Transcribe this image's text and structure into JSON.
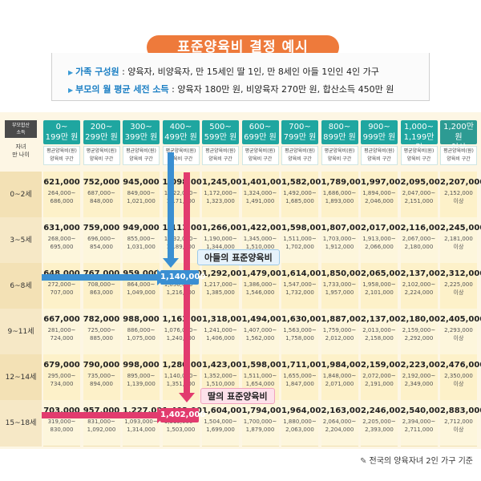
{
  "title": "표준양육비 결정 예시",
  "info": {
    "family": {
      "key": "가족 구성원",
      "value": " : 양육자, 비양육자, 만 15세인 딸 1인, 만 8세인 아들 1인인 4인 가구"
    },
    "income": {
      "key": "부모의 월 평균 세전 소득",
      "value": " : 양육자 180만 원, 비양육자 270만 원, 합산소득 450만 원"
    }
  },
  "corner": {
    "top": "부모합산\n소득",
    "bottom": "자녀\n만 나이"
  },
  "sub_header": "평균양육비(원)\n양육비 구간",
  "columns": [
    "0~\n199만 원",
    "200~\n299만 원",
    "300~\n399만 원",
    "400~\n499만 원",
    "500~\n599만 원",
    "600~\n699만 원",
    "700~\n799만 원",
    "800~\n899만 원",
    "900~\n999만 원",
    "1,000~\n1,199만 원",
    "1,200만 원\n이상"
  ],
  "rows": [
    {
      "age": "0~2세",
      "cells": [
        [
          "621,000",
          "264,000~\n686,000"
        ],
        [
          "752,000",
          "687,000~\n848,000"
        ],
        [
          "945,000",
          "849,000~\n1,021,000"
        ],
        [
          "1,098,000",
          "1,022,000~\n1,171,000"
        ],
        [
          "1,245,000",
          "1,172,000~\n1,323,000"
        ],
        [
          "1,401,000",
          "1,324,000~\n1,491,000"
        ],
        [
          "1,582,000",
          "1,492,000~\n1,685,000"
        ],
        [
          "1,789,000",
          "1,686,000~\n1,893,000"
        ],
        [
          "1,997,000",
          "1,894,000~\n2,046,000"
        ],
        [
          "2,095,000",
          "2,047,000~\n2,151,000"
        ],
        [
          "2,207,000",
          "2,152,000\n이상"
        ]
      ]
    },
    {
      "age": "3~5세",
      "cells": [
        [
          "631,000",
          "268,000~\n695,000"
        ],
        [
          "759,000",
          "696,000~\n854,000"
        ],
        [
          "949,000",
          "855,000~\n1,031,000"
        ],
        [
          "1,113,000",
          "1,032,000~\n1,189,000"
        ],
        [
          "1,266,000",
          "1,190,000~\n1,344,000"
        ],
        [
          "1,422,000",
          "1,345,000~\n1,510,000"
        ],
        [
          "1,598,000",
          "1,511,000~\n1,702,000"
        ],
        [
          "1,807,000",
          "1,703,000~\n1,912,000"
        ],
        [
          "2,017,000",
          "1,913,000~\n2,066,000"
        ],
        [
          "2,116,000",
          "2,067,000~\n2,180,000"
        ],
        [
          "2,245,000",
          "2,181,000\n이상"
        ]
      ]
    },
    {
      "age": "6~8세",
      "cells": [
        [
          "648,000",
          "272,000~\n707,000"
        ],
        [
          "767,000",
          "708,000~\n863,000"
        ],
        [
          "959,000",
          "864,000~\n1,049,000"
        ],
        [
          "1,140,000",
          "1,050,000~\n1,216,000"
        ],
        [
          "1,292,000",
          "1,217,000~\n1,385,000"
        ],
        [
          "1,479,000",
          "1,386,000~\n1,546,000"
        ],
        [
          "1,614,000",
          "1,547,000~\n1,732,000"
        ],
        [
          "1,850,000",
          "1,733,000~\n1,957,000"
        ],
        [
          "2,065,000",
          "1,958,000~\n2,101,000"
        ],
        [
          "2,137,000",
          "2,102,000~\n2,224,000"
        ],
        [
          "2,312,000",
          "2,225,000\n이상"
        ]
      ]
    },
    {
      "age": "9~11세",
      "cells": [
        [
          "667,000",
          "281,000~\n724,000"
        ],
        [
          "782,000",
          "725,000~\n885,000"
        ],
        [
          "988,000",
          "886,000~\n1,075,000"
        ],
        [
          "1,163,000",
          "1,076,000~\n1,240,000"
        ],
        [
          "1,318,000",
          "1,241,000~\n1,406,000"
        ],
        [
          "1,494,000",
          "1,407,000~\n1,562,000"
        ],
        [
          "1,630,000",
          "1,563,000~\n1,758,000"
        ],
        [
          "1,887,000",
          "1,759,000~\n2,012,000"
        ],
        [
          "2,137,000",
          "2,013,000~\n2,158,000"
        ],
        [
          "2,180,000",
          "2,159,000~\n2,292,000"
        ],
        [
          "2,405,000",
          "2,293,000\n이상"
        ]
      ]
    },
    {
      "age": "12~14세",
      "cells": [
        [
          "679,000",
          "295,000~\n734,000"
        ],
        [
          "790,000",
          "735,000~\n894,000"
        ],
        [
          "998,000",
          "895,000~\n1,139,000"
        ],
        [
          "1,280,000",
          "1,140,000~\n1,351,000"
        ],
        [
          "1,423,000",
          "1,352,000~\n1,510,000"
        ],
        [
          "1,598,000",
          "1,511,000~\n1,654,000"
        ],
        [
          "1,711,000",
          "1,655,000~\n1,847,000"
        ],
        [
          "1,984,000",
          "1,848,000~\n2,071,000"
        ],
        [
          "2,159,000",
          "2,072,000~\n2,191,000"
        ],
        [
          "2,223,000",
          "2,192,000~\n2,349,000"
        ],
        [
          "2,476,000",
          "2,350,000\n이상"
        ]
      ]
    },
    {
      "age": "15~18세",
      "cells": [
        [
          "703,000",
          "319,000~\n830,000"
        ],
        [
          "957,000",
          "831,000~\n1,092,000"
        ],
        [
          "1,227,000",
          "1,093,000~\n1,314,000"
        ],
        [
          "1,402,000",
          "1,315,000~\n1,503,000"
        ],
        [
          "1,604,000",
          "1,504,000~\n1,699,000"
        ],
        [
          "1,794,000",
          "1,700,000~\n1,879,000"
        ],
        [
          "1,964,000",
          "1,880,000~\n2,063,000"
        ],
        [
          "2,163,000",
          "2,064,000~\n2,204,000"
        ],
        [
          "2,246,000",
          "2,205,000~\n2,393,000"
        ],
        [
          "2,540,000",
          "2,394,000~\n2,711,000"
        ],
        [
          "2,883,000",
          "2,712,000\n이상"
        ]
      ]
    }
  ],
  "highlights": {
    "son": {
      "value": "1,140,000",
      "label": "아들의 표준양육비",
      "color": "#3a8fd2"
    },
    "daughter": {
      "value": "1,402,000",
      "label": "딸의 표준양육비",
      "color": "#e23b6e"
    }
  },
  "footer": "전국의 양육자녀 2인 가구 기준",
  "colors": {
    "title": "#ee7a3b",
    "header": "#1fa6a0",
    "key": "#1b7fc4"
  }
}
